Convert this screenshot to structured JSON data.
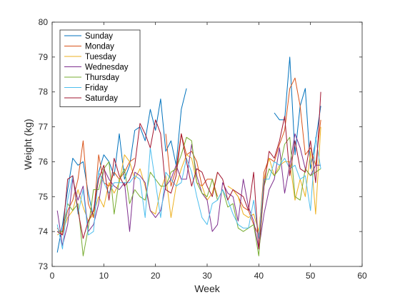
{
  "chart_data": {
    "type": "line",
    "title": "",
    "xlabel": "Week",
    "ylabel": "Weight (kg)",
    "xlim": [
      0,
      60
    ],
    "ylim": [
      73,
      80
    ],
    "xticks": [
      0,
      10,
      20,
      30,
      40,
      50,
      60
    ],
    "yticks": [
      73,
      74,
      75,
      76,
      77,
      78,
      79,
      80
    ],
    "grid": false,
    "legend_position": "top-left",
    "x": [
      1,
      2,
      3,
      4,
      5,
      6,
      7,
      8,
      9,
      10,
      11,
      12,
      13,
      14,
      15,
      16,
      17,
      18,
      19,
      20,
      21,
      22,
      23,
      24,
      25,
      26,
      27,
      28,
      29,
      30,
      31,
      32,
      33,
      34,
      35,
      36,
      37,
      38,
      39,
      40,
      41,
      42,
      43,
      44,
      45,
      46,
      47,
      48,
      49,
      50,
      51,
      52
    ],
    "series": [
      {
        "name": "Sunday",
        "color": "#0072BD",
        "values": [
          73.4,
          74.2,
          75.2,
          76.1,
          75.9,
          76.0,
          75.1,
          74.4,
          75.7,
          76.2,
          76.0,
          75.6,
          76.8,
          75.5,
          75.9,
          76.9,
          77.0,
          76.6,
          77.5,
          76.9,
          77.8,
          76.3,
          76.6,
          75.9,
          77.5,
          78.1,
          null,
          null,
          null,
          null,
          null,
          null,
          null,
          null,
          null,
          null,
          null,
          null,
          null,
          null,
          null,
          null,
          77.4,
          77.2,
          77.2,
          79.0,
          76.2,
          77.6,
          78.1,
          75.8,
          76.6,
          77.6
        ]
      },
      {
        "name": "Monday",
        "color": "#D95319",
        "values": [
          74.1,
          73.9,
          74.6,
          74.9,
          75.5,
          76.6,
          74.8,
          74.4,
          76.2,
          75.4,
          75.3,
          75.7,
          75.5,
          75.7,
          76.0,
          76.1,
          null,
          null,
          null,
          null,
          null,
          76.8,
          75.3,
          75.8,
          76.8,
          76.2,
          76.3,
          76.0,
          75.3,
          75.5,
          75.5,
          75.0,
          null,
          null,
          75.2,
          75.0,
          74.7,
          74.6,
          74.2,
          73.9,
          75.7,
          76.1,
          76.0,
          76.5,
          76.9,
          78.1,
          78.4,
          77.6,
          76.2,
          76.4,
          75.9,
          77.2
        ]
      },
      {
        "name": "Tuesday",
        "color": "#EDB120",
        "values": [
          73.9,
          74.0,
          74.4,
          74.6,
          75.2,
          74.7,
          74.3,
          74.5,
          75.0,
          74.7,
          75.4,
          75.1,
          75.4,
          76.2,
          76.0,
          75.5,
          75.8,
          75.3,
          74.6,
          74.5,
          75.2,
          75.6,
          74.4,
          75.3,
          75.8,
          76.2,
          76.1,
          75.4,
          75.3,
          74.9,
          75.1,
          75.7,
          null,
          75.3,
          75.2,
          75.0,
          74.5,
          74.4,
          74.5,
          74.0,
          75.5,
          76.1,
          75.6,
          75.9,
          76.0,
          76.0,
          74.9,
          75.5,
          75.0,
          76.3,
          74.5,
          77.0
        ]
      },
      {
        "name": "Wednesday",
        "color": "#7E2F8E",
        "values": [
          74.6,
          73.6,
          74.2,
          75.5,
          74.9,
          75.3,
          74.0,
          74.2,
          74.8,
          75.8,
          75.5,
          75.3,
          75.2,
          75.4,
          74.0,
          75.7,
          75.6,
          75.4,
          74.6,
          74.4,
          74.6,
          75.3,
          75.5,
          75.9,
          75.5,
          75.5,
          76.5,
          75.6,
          75.1,
          74.9,
          74.0,
          74.2,
          75.4,
          75.1,
          75.0,
          74.3,
          75.5,
          74.7,
          74.3,
          73.5,
          74.5,
          75.2,
          75.5,
          76.4,
          75.1,
          75.9,
          76.8,
          76.4,
          75.8,
          75.6,
          75.9,
          75.9
        ]
      },
      {
        "name": "Thursday",
        "color": "#77AC30",
        "values": [
          74.0,
          74.0,
          74.8,
          74.6,
          74.8,
          73.3,
          74.1,
          75.2,
          75.2,
          75.8,
          76.0,
          74.5,
          75.5,
          75.8,
          74.8,
          75.2,
          75.0,
          74.9,
          75.7,
          75.5,
          75.3,
          75.3,
          75.7,
          75.8,
          76.2,
          76.7,
          76.6,
          75.4,
          75.1,
          75.0,
          75.5,
          74.9,
          75.2,
          74.7,
          74.8,
          74.1,
          74.0,
          74.1,
          74.2,
          73.3,
          75.3,
          75.8,
          75.6,
          75.8,
          76.5,
          76.7,
          75.0,
          74.9,
          75.8,
          75.6,
          75.7,
          75.8
        ]
      },
      {
        "name": "Friday",
        "color": "#4DBEEE",
        "values": [
          74.2,
          73.5,
          74.9,
          75.6,
          74.5,
          75.2,
          73.9,
          74.0,
          75.7,
          75.4,
          75.1,
          75.4,
          75.4,
          75.4,
          75.4,
          75.6,
          75.5,
          74.4,
          76.4,
          75.4,
          74.4,
          75.7,
          75.5,
          75.3,
          75.4,
          76.1,
          75.7,
          75.0,
          74.4,
          74.2,
          74.8,
          74.9,
          75.2,
          74.9,
          74.5,
          74.2,
          74.1,
          74.1,
          74.9,
          73.8,
          75.5,
          75.5,
          76.0,
          75.9,
          76.1,
          75.8,
          75.9,
          75.5,
          75.6,
          74.6,
          76.7,
          75.8
        ]
      },
      {
        "name": "Saturday",
        "color": "#A2142F",
        "values": [
          74.0,
          73.9,
          75.5,
          75.6,
          74.6,
          73.8,
          74.3,
          74.6,
          75.5,
          75.9,
          74.9,
          76.1,
          75.6,
          75.3,
          75.5,
          75.9,
          77.1,
          76.8,
          76.4,
          77.2,
          76.8,
          75.2,
          75.1,
          75.6,
          76.8,
          76.0,
          75.3,
          75.8,
          75.7,
          75.3,
          75.0,
          75.7,
          75.5,
          74.9,
          75.2,
          75.1,
          75.0,
          74.6,
          75.7,
          73.5,
          75.3,
          76.3,
          76.1,
          76.6,
          77.3,
          75.6,
          76.6,
          75.8,
          75.7,
          76.6,
          75.4,
          78.0
        ]
      }
    ]
  }
}
